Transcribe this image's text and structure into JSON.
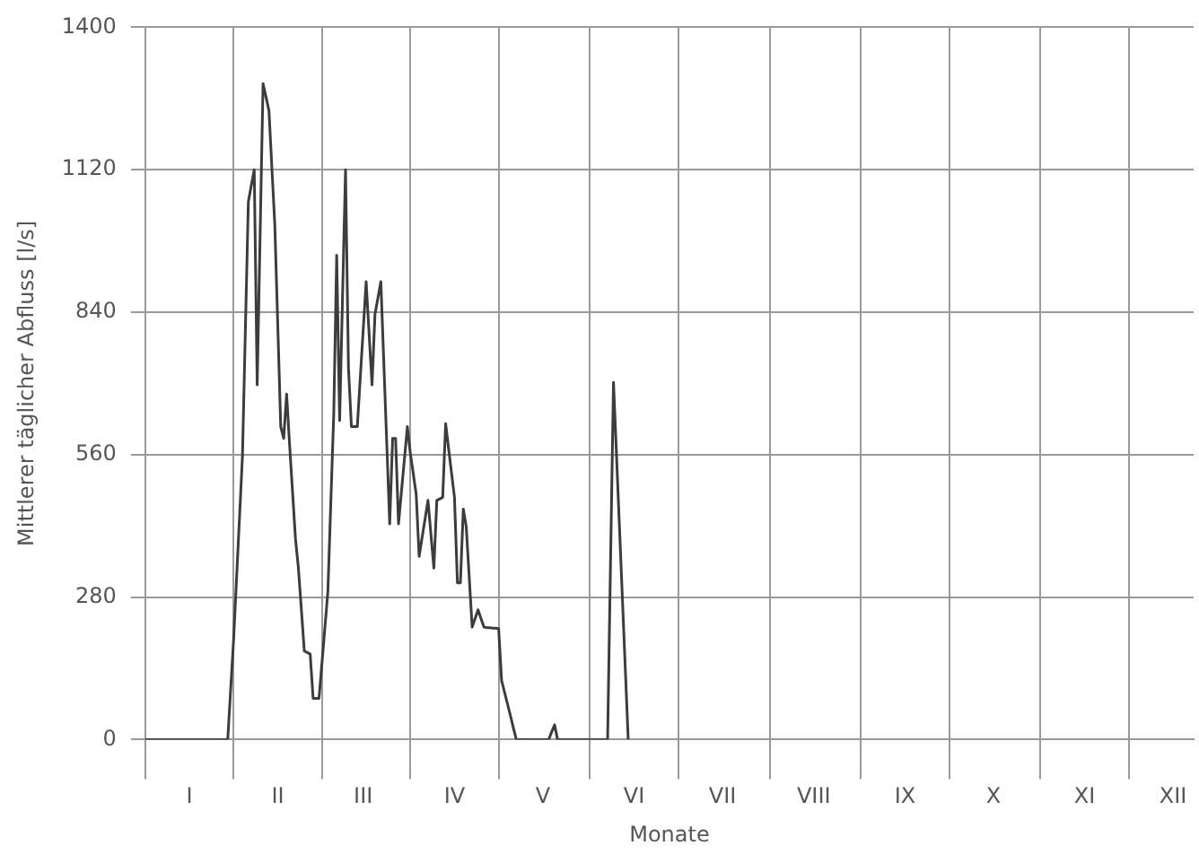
{
  "chart_data": {
    "type": "line",
    "xlabel": "Monate",
    "ylabel": "Mittlerer täglicher Abfluss [l/s]",
    "categories": [
      null,
      null,
      null,
      null,
      null,
      null,
      null,
      null,
      null,
      null,
      null,
      null,
      null,
      null,
      null,
      "I",
      null,
      null,
      null,
      null,
      null,
      null,
      null,
      null,
      null,
      null,
      null,
      null,
      null,
      null,
      null,
      null,
      null,
      null,
      null,
      null,
      null,
      null,
      null,
      null,
      null,
      null,
      null,
      null,
      null,
      "II",
      null,
      null,
      null,
      null,
      null,
      null,
      null,
      null,
      null,
      null,
      null,
      null,
      null,
      null,
      null,
      null,
      null,
      null,
      null,
      null,
      null,
      null,
      null,
      null,
      null,
      null,
      null,
      null,
      "III",
      null,
      null,
      null,
      null,
      null,
      null,
      null,
      null,
      null,
      null,
      null,
      null,
      null,
      null,
      null,
      null,
      null,
      null,
      null,
      null,
      null,
      null,
      null,
      null,
      null,
      null,
      null,
      null,
      null,
      null,
      "IV",
      null,
      null,
      null,
      null,
      null,
      null,
      null,
      null,
      null,
      null,
      null,
      null,
      null,
      null,
      null,
      null,
      null,
      null,
      null,
      null,
      null,
      null,
      null,
      null,
      null,
      null,
      null,
      null,
      null,
      "V",
      null,
      null,
      null,
      null,
      null,
      null,
      null,
      null,
      null,
      null,
      null,
      null,
      null,
      null,
      null,
      null,
      null,
      null,
      null,
      null,
      null,
      null,
      null,
      null,
      null,
      null,
      null,
      null,
      null,
      null,
      "VI",
      null,
      null,
      null,
      null,
      null,
      null,
      null,
      null,
      null,
      null,
      null,
      null,
      null,
      null,
      null,
      null,
      null,
      null,
      null,
      null,
      null,
      null,
      null,
      null,
      null,
      null,
      null,
      null,
      null,
      "VII",
      null,
      null,
      null,
      null,
      null,
      null,
      null,
      null,
      null,
      null,
      null,
      null,
      null,
      null,
      null,
      null,
      null,
      null,
      null,
      null,
      null,
      null,
      null,
      null,
      null,
      null,
      null,
      null,
      null,
      null,
      "VIII",
      null,
      null,
      null,
      null,
      null,
      null,
      null,
      null,
      null,
      null,
      null,
      null,
      null,
      null,
      null,
      null,
      null,
      null,
      null,
      null,
      null,
      null,
      null,
      null,
      null,
      null,
      null,
      null,
      null,
      null,
      "IX",
      null,
      null,
      null,
      null,
      null,
      null,
      null,
      null,
      null,
      null,
      null,
      null,
      null,
      null,
      null,
      null,
      null,
      null,
      null,
      null,
      null,
      null,
      null,
      null,
      null,
      null,
      null,
      null,
      null,
      "X",
      null,
      null,
      null,
      null,
      null,
      null,
      null,
      null,
      null,
      null,
      null,
      null,
      null,
      null,
      null,
      null,
      null,
      null,
      null,
      null,
      null,
      null,
      null,
      null,
      null,
      null,
      null,
      null,
      null,
      null,
      "XI",
      null,
      null,
      null,
      null,
      null,
      null,
      null,
      null,
      null,
      null,
      null,
      null,
      null,
      null,
      null,
      null,
      null,
      null,
      null,
      null,
      null,
      null,
      null,
      null,
      null,
      null,
      null,
      null,
      null,
      "XII",
      null,
      null,
      null,
      null,
      null,
      null,
      null
    ],
    "series": [
      {
        "color": "#3c3c3c",
        "values": [
          0,
          0,
          0,
          0,
          0,
          0,
          0,
          0,
          0,
          0,
          0,
          0,
          0,
          0,
          0,
          0,
          0,
          0,
          0,
          0,
          0,
          0,
          0,
          0,
          0,
          0,
          0,
          0,
          0,
          99,
          197,
          317,
          437,
          557,
          807,
          1057,
          1089,
          1120,
          697,
          993,
          1289,
          1263,
          1236,
          1123,
          1010,
          813,
          615,
          592,
          679,
          580,
          488,
          395,
          337,
          256,
          174,
          171,
          168,
          81,
          81,
          81,
          151,
          220,
          290,
          465,
          639,
          952,
          627,
          874,
          1120,
          731,
          615,
          615,
          615,
          710,
          805,
          900,
          799,
          697,
          836,
          868,
          900,
          741,
          583,
          424,
          592,
          592,
          424,
          488,
          551,
          615,
          563,
          523,
          482,
          360,
          397,
          433,
          470,
          404,
          337,
          470,
          473,
          476,
          621,
          572,
          524,
          476,
          308,
          308,
          453,
          418,
          320,
          221,
          238,
          255,
          238,
          221,
          220,
          220,
          219,
          219,
          218,
          116,
          93,
          70,
          47,
          23,
          0,
          0,
          0,
          0,
          0,
          0,
          0,
          0,
          0,
          0,
          0,
          0,
          15,
          29,
          0,
          0,
          0,
          0,
          0,
          0,
          0,
          0,
          0,
          0,
          0,
          0,
          0,
          0,
          0,
          0,
          0,
          0,
          351,
          702,
          562,
          421,
          281,
          140,
          0,
          null,
          null,
          null,
          null,
          null,
          null,
          null,
          null,
          null,
          null,
          null,
          null,
          null,
          null,
          null,
          null,
          null,
          null,
          null,
          null,
          null,
          null,
          null,
          null,
          null,
          null,
          null,
          null,
          null,
          null,
          null,
          null,
          null,
          null,
          null,
          null,
          null,
          null,
          null,
          null,
          null,
          null,
          null,
          null,
          null,
          null,
          null,
          null,
          null,
          null,
          null,
          null,
          null,
          null,
          null,
          null,
          null,
          null,
          null,
          null,
          null,
          null,
          null,
          null,
          null,
          null,
          null,
          null,
          null,
          null,
          null,
          null,
          null,
          null,
          null,
          null,
          null,
          null,
          null,
          null,
          null,
          null,
          null,
          null,
          null,
          null,
          null,
          null,
          null,
          null,
          null,
          null,
          null,
          null,
          null,
          null,
          null,
          null,
          null,
          null,
          null,
          null,
          null,
          null,
          null,
          null,
          null,
          null,
          null,
          null,
          null,
          null,
          null,
          null,
          null,
          null,
          null,
          null,
          null,
          null,
          null,
          null,
          null,
          null,
          null,
          null,
          null,
          null,
          null,
          null,
          null,
          null,
          null,
          null,
          null,
          null,
          null,
          null,
          null,
          null,
          null,
          null,
          null,
          null,
          null,
          null,
          null,
          null,
          null,
          null,
          null,
          null,
          null,
          null,
          null,
          null,
          null,
          null,
          null,
          null,
          null,
          null,
          null,
          null,
          null,
          null,
          null,
          null,
          null,
          null,
          null,
          null,
          null,
          null,
          null,
          null,
          null,
          null,
          null,
          null,
          null,
          null,
          null,
          null,
          null,
          null,
          null,
          null,
          null,
          null,
          null,
          null
        ]
      }
    ],
    "ylim": [
      0,
      1400
    ],
    "yticks": [
      0,
      280,
      560,
      840,
      1120,
      1400
    ],
    "grid": true,
    "legend": false,
    "marker": "none",
    "line_style": "solid"
  }
}
